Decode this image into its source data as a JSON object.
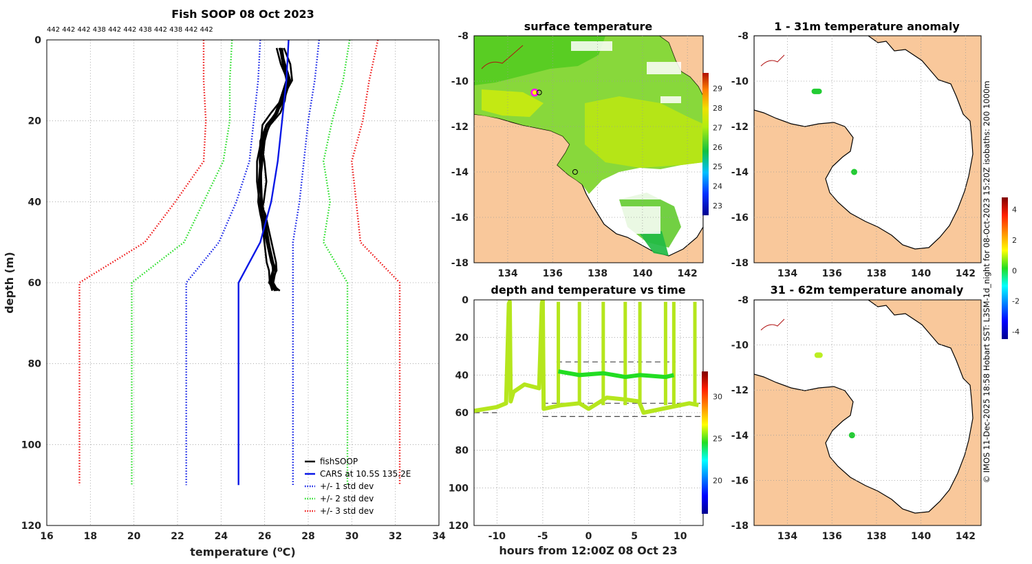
{
  "chart_data": [
    {
      "type": "line",
      "title": "Fish SOOP 08 Oct 2023",
      "xlabel": "temperature (°C)",
      "xlabel_main": "temperature (",
      "xlabel_sup": "o",
      "xlabel_tail": "C)",
      "ylabel": "depth (m)",
      "xlim": [
        16,
        34
      ],
      "ylim": [
        120,
        0
      ],
      "xticks": [
        16,
        18,
        20,
        22,
        24,
        26,
        28,
        30,
        32,
        34
      ],
      "yticks": [
        0,
        20,
        40,
        60,
        80,
        100,
        120
      ],
      "sensor_ids": "442 442 442 438 442 442 438 442 438 442 442",
      "series": [
        {
          "name": "fishSOOP",
          "color": "#000000",
          "style": "solid",
          "x": [
            26.8,
            26.9,
            27.0,
            26.7,
            26.5,
            26.2,
            26.0,
            25.9,
            25.8,
            25.7,
            25.8,
            26.3,
            26.5,
            26.4,
            26.6
          ],
          "y": [
            2,
            6,
            10,
            15,
            18,
            21,
            25,
            30,
            35,
            40,
            43,
            55,
            57,
            60,
            62
          ]
        },
        {
          "name": "CARS at 10.5S 135.2E",
          "color": "#0a18e6",
          "style": "solid",
          "x": [
            27.1,
            27.0,
            26.8,
            26.6,
            26.3,
            25.8,
            25.3,
            24.8,
            24.8
          ],
          "y": [
            0,
            10,
            20,
            30,
            40,
            50,
            55,
            60,
            110
          ]
        },
        {
          "name": "+/- 1 std dev",
          "color": "#0a18e6",
          "style": "dotted",
          "x_low": [
            25.8,
            25.7,
            25.5,
            25.3,
            24.7,
            23.9,
            22.4,
            22.4
          ],
          "x_high": [
            28.5,
            28.3,
            28.0,
            27.8,
            27.6,
            27.3,
            27.3,
            27.3
          ],
          "y": [
            0,
            10,
            20,
            30,
            40,
            50,
            60,
            110
          ]
        },
        {
          "name": "+/- 2 std dev",
          "color": "#22dd22",
          "style": "dotted",
          "x_low": [
            24.5,
            24.4,
            24.4,
            24.1,
            23.2,
            22.3,
            19.9,
            19.9
          ],
          "x_high": [
            29.9,
            29.6,
            29.1,
            28.7,
            29.0,
            28.7,
            29.8,
            29.8
          ],
          "y": [
            0,
            10,
            20,
            30,
            40,
            50,
            60,
            110
          ]
        },
        {
          "name": "+/- 3 std dev",
          "color": "#ee1111",
          "style": "dotted",
          "x_low": [
            23.2,
            23.2,
            23.3,
            23.2,
            21.9,
            20.5,
            17.5,
            17.5
          ],
          "x_high": [
            31.2,
            30.8,
            30.5,
            30.0,
            30.2,
            30.4,
            32.2,
            32.2
          ],
          "y": [
            0,
            10,
            20,
            30,
            40,
            50,
            60,
            110
          ]
        }
      ],
      "legend": [
        "fishSOOP",
        "CARS at 10.5S 135.2E",
        "+/- 1 std dev",
        "+/- 2 std dev",
        "+/- 3 std dev"
      ],
      "legend_position": "bottom-right"
    },
    {
      "type": "heatmap",
      "title": "surface temperature",
      "xlim": [
        132.5,
        142.7
      ],
      "ylim": [
        -18,
        -8
      ],
      "xticks": [
        134,
        136,
        138,
        140,
        142
      ],
      "yticks": [
        -8,
        -10,
        -12,
        -14,
        -16,
        -18
      ],
      "colorbar": {
        "ticks": [
          23,
          24,
          25,
          26,
          27,
          28,
          29
        ],
        "range": [
          22.5,
          29.8
        ]
      },
      "observation_points": [
        {
          "lon": 135.2,
          "lat": -10.5
        },
        {
          "lon": 135.4,
          "lat": -10.5
        },
        {
          "lon": 137.0,
          "lat": -14.0
        }
      ]
    },
    {
      "type": "scatter",
      "title": "depth and temperature vs time",
      "xlabel": "hours from 12:00Z 08 Oct 23",
      "xlim": [
        -12.5,
        12.5
      ],
      "ylim": [
        120,
        0
      ],
      "xticks": [
        -10,
        -5,
        0,
        5,
        10
      ],
      "yticks": [
        0,
        20,
        40,
        60,
        80,
        100,
        120
      ],
      "colorbar": {
        "ticks": [
          20,
          25,
          30
        ],
        "range": [
          16,
          33
        ]
      },
      "track_time": [
        -12.5,
        -10,
        -9,
        -8.7,
        -8.6,
        -8.5,
        -8.2,
        -7,
        -5.4,
        -5.1,
        -5,
        -4.9,
        -3,
        -1,
        0,
        2,
        4,
        5.5,
        6,
        8,
        11,
        12
      ],
      "track_depth": [
        59,
        57,
        55,
        2,
        1,
        54,
        49,
        45,
        47,
        2,
        0,
        58,
        56,
        55,
        58,
        52,
        53,
        54,
        60,
        58,
        55,
        56
      ],
      "reference_depths": [
        33,
        55,
        60,
        62
      ]
    },
    {
      "type": "heatmap",
      "title": "1 - 31m temperature anomaly",
      "xlim": [
        132.5,
        142.7
      ],
      "ylim": [
        -18,
        -8
      ],
      "xticks": [
        134,
        136,
        138,
        140,
        142
      ],
      "yticks": [
        -8,
        -10,
        -12,
        -14,
        -16,
        -18
      ],
      "colorbar": {
        "ticks": [
          -4,
          -2,
          0,
          2,
          4
        ],
        "range": [
          -4.5,
          4.8
        ]
      },
      "points": [
        {
          "lon": 135.3,
          "lat": -10.45,
          "anomaly": 0.1
        },
        {
          "lon": 137.0,
          "lat": -14.0,
          "anomaly": 0.2
        }
      ]
    },
    {
      "type": "heatmap",
      "title": "31 - 62m temperature anomaly",
      "xlim": [
        132.5,
        142.7
      ],
      "ylim": [
        -18,
        -8
      ],
      "xticks": [
        134,
        136,
        138,
        140,
        142
      ],
      "yticks": [
        -8,
        -10,
        -12,
        -14,
        -16,
        -18
      ],
      "points": [
        {
          "lon": 135.4,
          "lat": -10.45,
          "anomaly": 1.2
        },
        {
          "lon": 136.9,
          "lat": -14.0,
          "anomaly": 0.3
        }
      ]
    }
  ],
  "credit": "© IMOS 11-Dec-2025 18:58 Hobart SST: L3SM-1d_night for 08-Oct-2023 15:20Z isobaths: 200  1000m",
  "colors": {
    "land": "#f9c89b",
    "ocean": "#ffffff",
    "coast": "#000000",
    "river": "#b01010"
  }
}
